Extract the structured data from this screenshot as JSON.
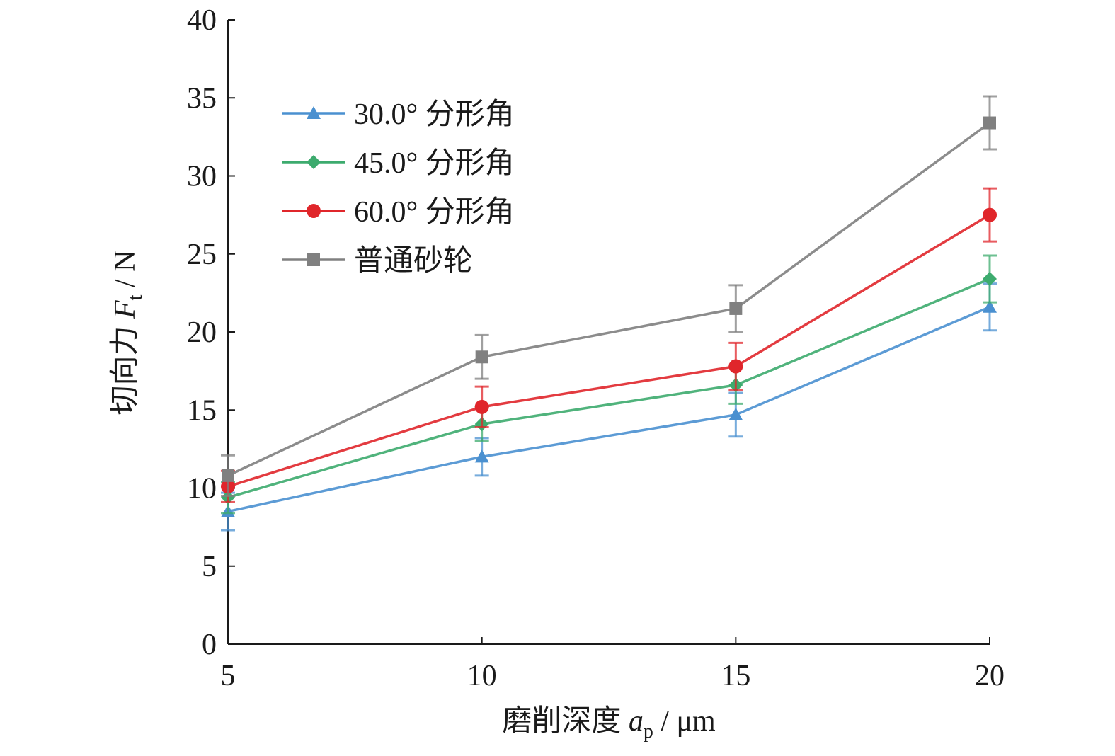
{
  "chart_data": {
    "type": "line",
    "x": [
      5,
      10,
      15,
      20
    ],
    "xlim": [
      5,
      20
    ],
    "ylim": [
      0,
      40
    ],
    "x_ticks": [
      5,
      10,
      15,
      20
    ],
    "y_ticks": [
      0,
      5,
      10,
      15,
      20,
      25,
      30,
      35,
      40
    ],
    "x_tick_labels": [
      "5",
      "10",
      "15",
      "20"
    ],
    "y_tick_labels": [
      "0",
      "5",
      "10",
      "15",
      "20",
      "25",
      "30",
      "35",
      "40"
    ],
    "xlabel": {
      "prefix": "磨削深度 ",
      "symbol": "a",
      "subscript": "p",
      "suffix": " / μm"
    },
    "ylabel": {
      "prefix": "切向力 ",
      "symbol": "F",
      "subscript": "t",
      "suffix": " / N"
    },
    "grid": false,
    "legend_position": "top-left",
    "series": [
      {
        "name": "30.0° 分形角",
        "marker": "triangle",
        "color": "#4a90d0",
        "values": [
          8.5,
          12.0,
          14.7,
          21.6
        ],
        "errors": [
          1.2,
          1.2,
          1.4,
          1.5
        ]
      },
      {
        "name": "45.0° 分形角",
        "marker": "diamond",
        "color": "#3dab6e",
        "values": [
          9.4,
          14.1,
          16.6,
          23.4
        ],
        "errors": [
          1.0,
          1.1,
          1.2,
          1.5
        ]
      },
      {
        "name": "60.0° 分形角",
        "marker": "circle",
        "color": "#e0262b",
        "values": [
          10.1,
          15.2,
          17.8,
          27.5
        ],
        "errors": [
          1.0,
          1.3,
          1.5,
          1.7
        ]
      },
      {
        "name": "普通砂轮",
        "marker": "square",
        "color": "#808080",
        "values": [
          10.8,
          18.4,
          21.5,
          33.4
        ],
        "errors": [
          1.3,
          1.4,
          1.5,
          1.7
        ]
      }
    ]
  }
}
